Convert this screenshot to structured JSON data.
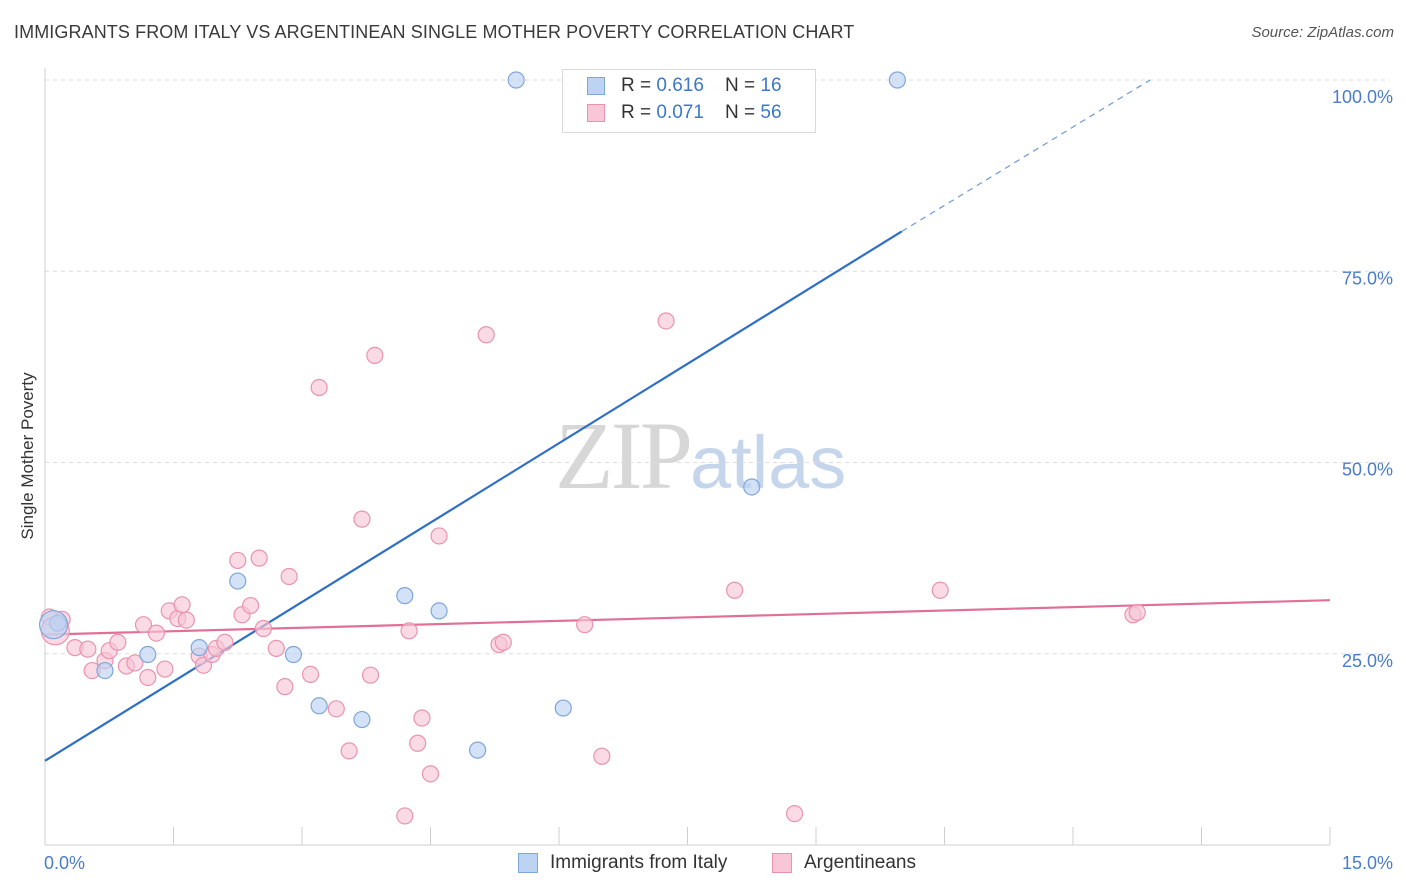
{
  "header": {
    "title": "IMMIGRANTS FROM ITALY VS ARGENTINEAN SINGLE MOTHER POVERTY CORRELATION CHART",
    "source": "Source: ZipAtlas.com"
  },
  "watermark": {
    "zip": "ZIP",
    "atlas": "atlas"
  },
  "legend_top": {
    "rows": [
      {
        "r_label": "R = ",
        "r_value": "0.616",
        "n_label": "N = ",
        "n_value": "16"
      },
      {
        "r_label": "R = ",
        "r_value": "0.071",
        "n_label": "N = ",
        "n_value": "56"
      }
    ]
  },
  "legend_bottom": {
    "items": [
      {
        "label": "Immigrants from Italy"
      },
      {
        "label": "Argentineans"
      }
    ]
  },
  "colors": {
    "italy_fill": "#bcd3f2",
    "italy_stroke": "#7fa6db",
    "italy_line": "#2f6fc7",
    "arg_fill": "#f8c6d6",
    "arg_stroke": "#e993b0",
    "arg_line": "#e07098",
    "grid": "#dddddd",
    "axis": "#cfcfcf",
    "tick_label": "#4a7cc9"
  },
  "chart_data": {
    "type": "scatter",
    "title": "IMMIGRANTS FROM ITALY VS ARGENTINEAN SINGLE MOTHER POVERTY CORRELATION CHART",
    "xlabel": "",
    "ylabel": "Single Mother Poverty",
    "xlim": [
      0,
      15
    ],
    "ylim": [
      0,
      100
    ],
    "x_tick_labels": [
      "0.0%",
      "15.0%"
    ],
    "y_tick_labels": [
      "25.0%",
      "50.0%",
      "75.0%",
      "100.0%"
    ],
    "y_ticks": [
      25,
      50,
      75,
      100
    ],
    "grid": true,
    "legend_placement": "top-center",
    "series": [
      {
        "name": "Immigrants from Italy",
        "points": [
          [
            0.15,
            29.0
          ],
          [
            0.7,
            22.8
          ],
          [
            1.2,
            24.9
          ],
          [
            1.8,
            25.8
          ],
          [
            2.25,
            34.5
          ],
          [
            2.9,
            24.9
          ],
          [
            3.2,
            18.2
          ],
          [
            3.7,
            16.4
          ],
          [
            4.2,
            32.6
          ],
          [
            4.6,
            30.6
          ],
          [
            5.05,
            12.4
          ],
          [
            5.5,
            100.0
          ],
          [
            6.05,
            17.9
          ],
          [
            8.25,
            46.8
          ],
          [
            9.95,
            100.0
          ],
          [
            0.1,
            28.8
          ]
        ],
        "trend": {
          "x0": 0,
          "y0": 11.0,
          "x1": 10.0,
          "y1": 80.2,
          "dashed_to_x": 12.9,
          "dashed_to_y": 100.0
        }
      },
      {
        "name": "Argentineans",
        "points": [
          [
            0.05,
            29.8
          ],
          [
            0.2,
            29.5
          ],
          [
            0.35,
            25.8
          ],
          [
            0.5,
            25.6
          ],
          [
            0.55,
            22.8
          ],
          [
            0.7,
            24.1
          ],
          [
            0.75,
            25.4
          ],
          [
            0.85,
            26.5
          ],
          [
            0.95,
            23.4
          ],
          [
            1.05,
            23.8
          ],
          [
            1.15,
            28.8
          ],
          [
            1.2,
            21.9
          ],
          [
            1.3,
            27.7
          ],
          [
            1.4,
            23.0
          ],
          [
            1.45,
            30.6
          ],
          [
            1.55,
            29.6
          ],
          [
            1.6,
            31.4
          ],
          [
            1.65,
            29.4
          ],
          [
            1.8,
            24.7
          ],
          [
            1.85,
            23.5
          ],
          [
            1.95,
            24.9
          ],
          [
            2.0,
            25.7
          ],
          [
            2.1,
            26.5
          ],
          [
            2.25,
            37.2
          ],
          [
            2.3,
            30.1
          ],
          [
            2.4,
            31.3
          ],
          [
            2.5,
            37.5
          ],
          [
            2.55,
            28.3
          ],
          [
            2.7,
            25.7
          ],
          [
            2.8,
            20.7
          ],
          [
            2.85,
            35.1
          ],
          [
            3.1,
            22.3
          ],
          [
            3.2,
            59.8
          ],
          [
            3.4,
            17.8
          ],
          [
            3.55,
            12.3
          ],
          [
            3.7,
            42.6
          ],
          [
            3.8,
            22.2
          ],
          [
            3.85,
            64.0
          ],
          [
            4.2,
            3.8
          ],
          [
            4.25,
            28.0
          ],
          [
            4.35,
            13.3
          ],
          [
            4.4,
            16.6
          ],
          [
            4.5,
            9.3
          ],
          [
            4.6,
            40.4
          ],
          [
            5.15,
            66.7
          ],
          [
            5.3,
            26.2
          ],
          [
            5.35,
            26.5
          ],
          [
            6.3,
            28.8
          ],
          [
            6.5,
            11.6
          ],
          [
            7.25,
            68.5
          ],
          [
            8.05,
            33.3
          ],
          [
            8.75,
            4.1
          ],
          [
            10.45,
            33.3
          ],
          [
            12.7,
            30.1
          ],
          [
            12.75,
            30.4
          ],
          [
            0.12,
            28.0
          ]
        ],
        "trend": {
          "x0": 0,
          "y0": 27.5,
          "x1": 15.0,
          "y1": 32.0
        }
      }
    ]
  }
}
